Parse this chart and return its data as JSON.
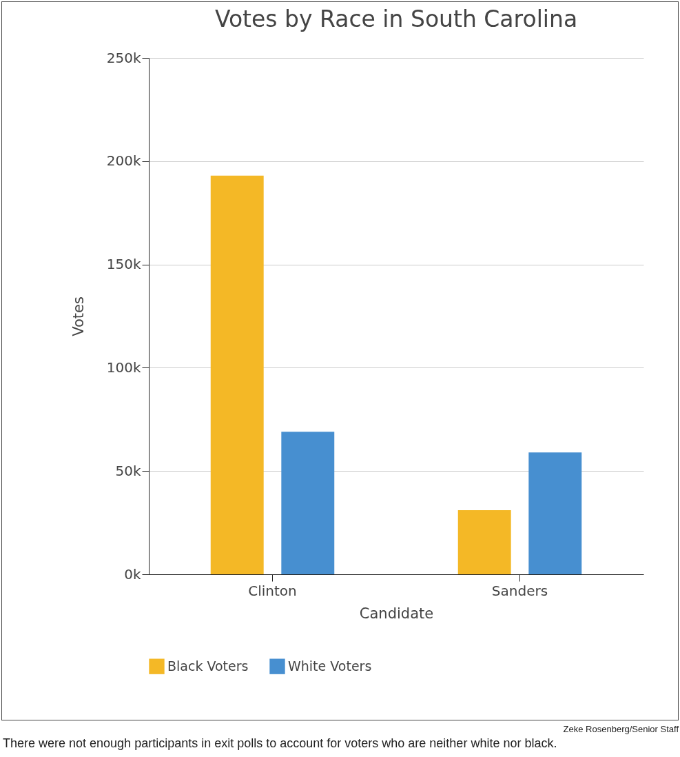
{
  "chart_data": {
    "type": "bar",
    "title": "Votes by Race in South Carolina",
    "xlabel": "Candidate",
    "ylabel": "Votes",
    "categories": [
      "Clinton",
      "Sanders"
    ],
    "series": [
      {
        "name": "Black Voters",
        "color": "#f4b826",
        "values": [
          193000,
          31000
        ]
      },
      {
        "name": "White Voters",
        "color": "#478fd0",
        "values": [
          69000,
          59000
        ]
      }
    ],
    "ylim": [
      0,
      250000
    ],
    "yticks": [
      {
        "value": 0,
        "label": "0k"
      },
      {
        "value": 50000,
        "label": "50k"
      },
      {
        "value": 100000,
        "label": "100k"
      },
      {
        "value": 150000,
        "label": "150k"
      },
      {
        "value": 200000,
        "label": "200k"
      },
      {
        "value": 250000,
        "label": "250k"
      }
    ],
    "grid": "y",
    "legend": "bottom",
    "annotations": [
      "Zeke Rosenberg/Senior Staff",
      "There were not enough participants in exit polls to account for voters who are neither white nor black."
    ]
  }
}
